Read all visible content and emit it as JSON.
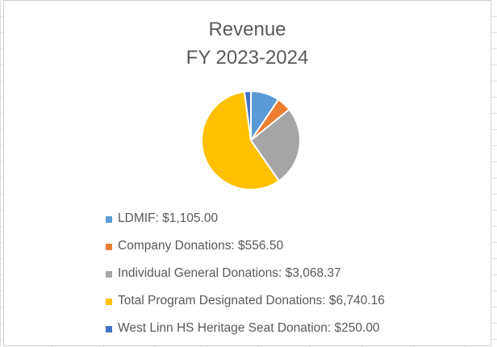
{
  "chart_data": {
    "type": "pie",
    "title": "Revenue",
    "subtitle": "FY 2023-2024",
    "categories": [
      "LDMIF",
      "Company Donations",
      "Individual General Donations",
      "Total Program Designated Donations",
      "West Linn HS Heritage Seat Donation"
    ],
    "values": [
      1105.0,
      556.5,
      3068.37,
      6740.16,
      250.0
    ],
    "legend_labels": [
      "LDMIF: $1,105.00",
      "Company Donations: $556.50",
      "Individual General Donations: $3,068.37",
      "Total Program Designated Donations: $6,740.16",
      "West Linn HS Heritage Seat Donation: $250.00"
    ],
    "colors": [
      "#5B9BD5",
      "#ED7D31",
      "#A5A5A5",
      "#FFC000",
      "#4472C4"
    ],
    "legend_position": "bottom"
  }
}
